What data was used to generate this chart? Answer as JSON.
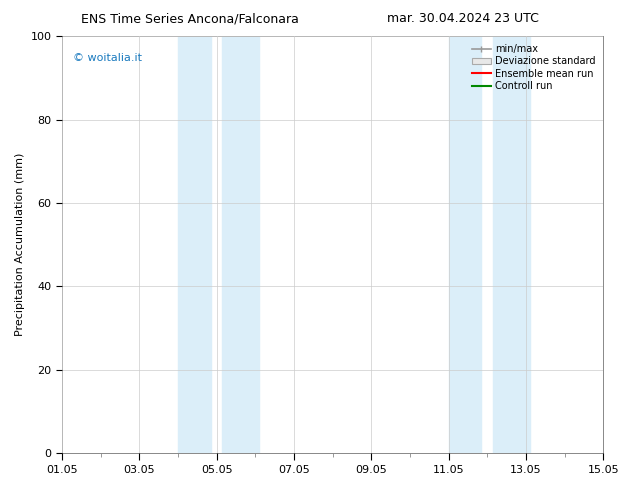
{
  "title_left": "ENS Time Series Ancona/Falconara",
  "title_right": "mar. 30.04.2024 23 UTC",
  "ylabel": "Precipitation Accumulation (mm)",
  "ylim": [
    0,
    100
  ],
  "xlim": [
    0,
    14
  ],
  "xtick_positions": [
    0,
    2,
    4,
    6,
    8,
    10,
    12,
    14
  ],
  "xtick_labels": [
    "01.05",
    "03.05",
    "05.05",
    "07.05",
    "09.05",
    "11.05",
    "13.05",
    "15.05"
  ],
  "ytick_positions": [
    0,
    20,
    40,
    60,
    80,
    100
  ],
  "ytick_labels": [
    "0",
    "20",
    "40",
    "60",
    "80",
    "100"
  ],
  "band1a_xmin": 3.0,
  "band1a_xmax": 3.85,
  "band1b_xmin": 4.15,
  "band1b_xmax": 5.1,
  "band2a_xmin": 10.0,
  "band2a_xmax": 10.85,
  "band2b_xmin": 11.15,
  "band2b_xmax": 12.1,
  "band_color": "#dbeef9",
  "watermark_text": "© woitalia.it",
  "watermark_color": "#1a7abf",
  "legend_labels": [
    "min/max",
    "Deviazione standard",
    "Ensemble mean run",
    "Controll run"
  ],
  "minmax_color": "#999999",
  "devstd_color": "#cccccc",
  "ensemble_color": "#ff0000",
  "control_color": "#008800",
  "background_color": "#ffffff",
  "grid_color": "#cccccc",
  "title_fontsize": 9,
  "ylabel_fontsize": 8,
  "tick_fontsize": 8,
  "legend_fontsize": 7,
  "watermark_fontsize": 8
}
